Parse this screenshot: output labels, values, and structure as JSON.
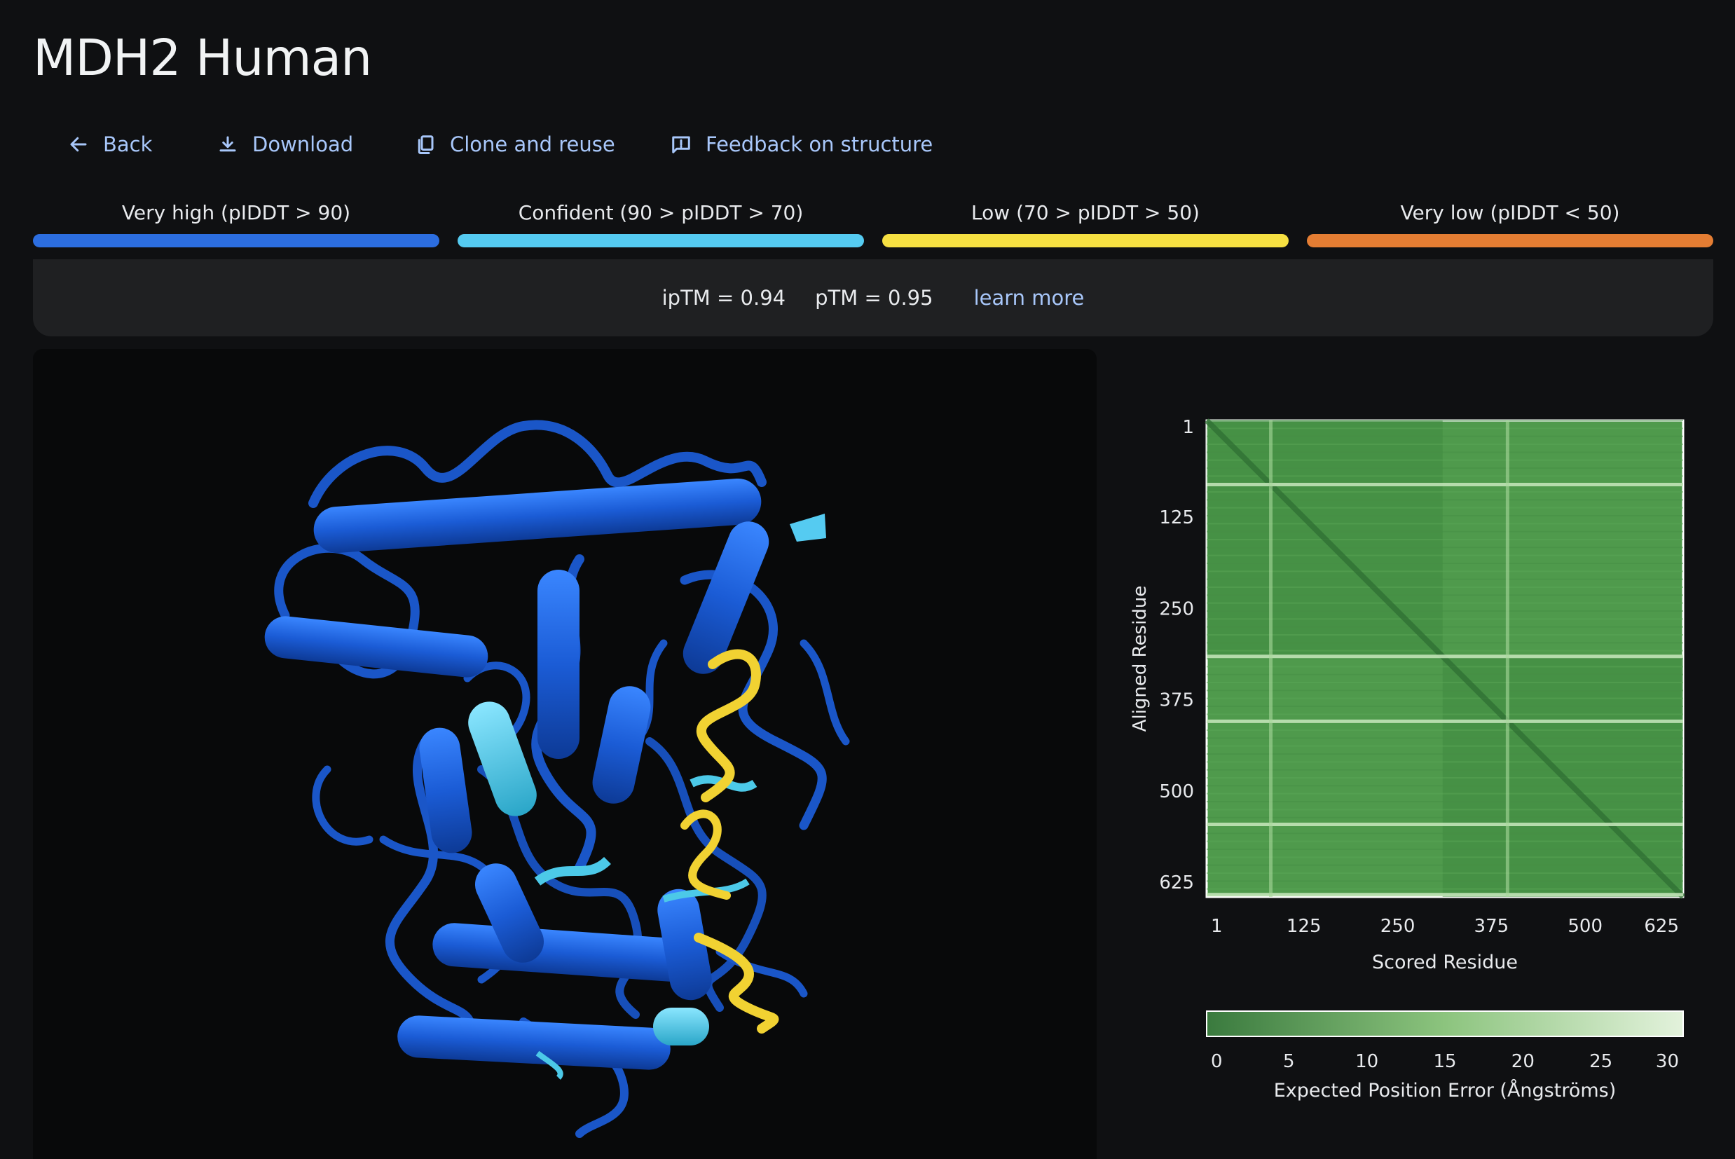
{
  "page": {
    "title": "MDH2 Human"
  },
  "toolbar": {
    "back_label": "Back",
    "download_label": "Download",
    "clone_label": "Clone and reuse",
    "feedback_label": "Feedback on structure"
  },
  "confidence_legend": [
    {
      "label": "Very high (pIDDT > 90)",
      "color": "#2c6ee0"
    },
    {
      "label": "Confident (90 > pIDDT > 70)",
      "color": "#55cbf1"
    },
    {
      "label": "Low (70 > pIDDT > 50)",
      "color": "#f6e042"
    },
    {
      "label": "Very low (pIDDT < 50)",
      "color": "#e47d33"
    }
  ],
  "metrics": {
    "iptm": "ipTM = 0.94",
    "ptm": "pTM = 0.95",
    "learn_more": "learn more"
  },
  "structure_viewer": {
    "description_icon": "protein-ribbon-structure",
    "colors": {
      "very_high": "#1c5ed8",
      "confident": "#4cc9e8",
      "low": "#f1d232"
    }
  },
  "chart_data": {
    "type": "heatmap",
    "x_label": "Scored Residue",
    "y_label": "Aligned Residue",
    "x_ticks": [
      "1",
      "125",
      "250",
      "375",
      "500",
      "625"
    ],
    "y_ticks": [
      "1",
      "125",
      "250",
      "375",
      "500",
      "625"
    ],
    "x_range": [
      1,
      625
    ],
    "y_range": [
      1,
      625
    ],
    "bright_rows": [
      85,
      310,
      395,
      530,
      622
    ],
    "bright_cols": [
      85,
      395
    ],
    "block_boundary": 310,
    "colorbar": {
      "label": "Expected Position Error (Ångströms)",
      "ticks": [
        "0",
        "5",
        "10",
        "15",
        "20",
        "25",
        "30"
      ],
      "range": [
        0,
        30
      ],
      "color_low": "#3a7a3e",
      "color_high": "#e3f2dc"
    }
  }
}
